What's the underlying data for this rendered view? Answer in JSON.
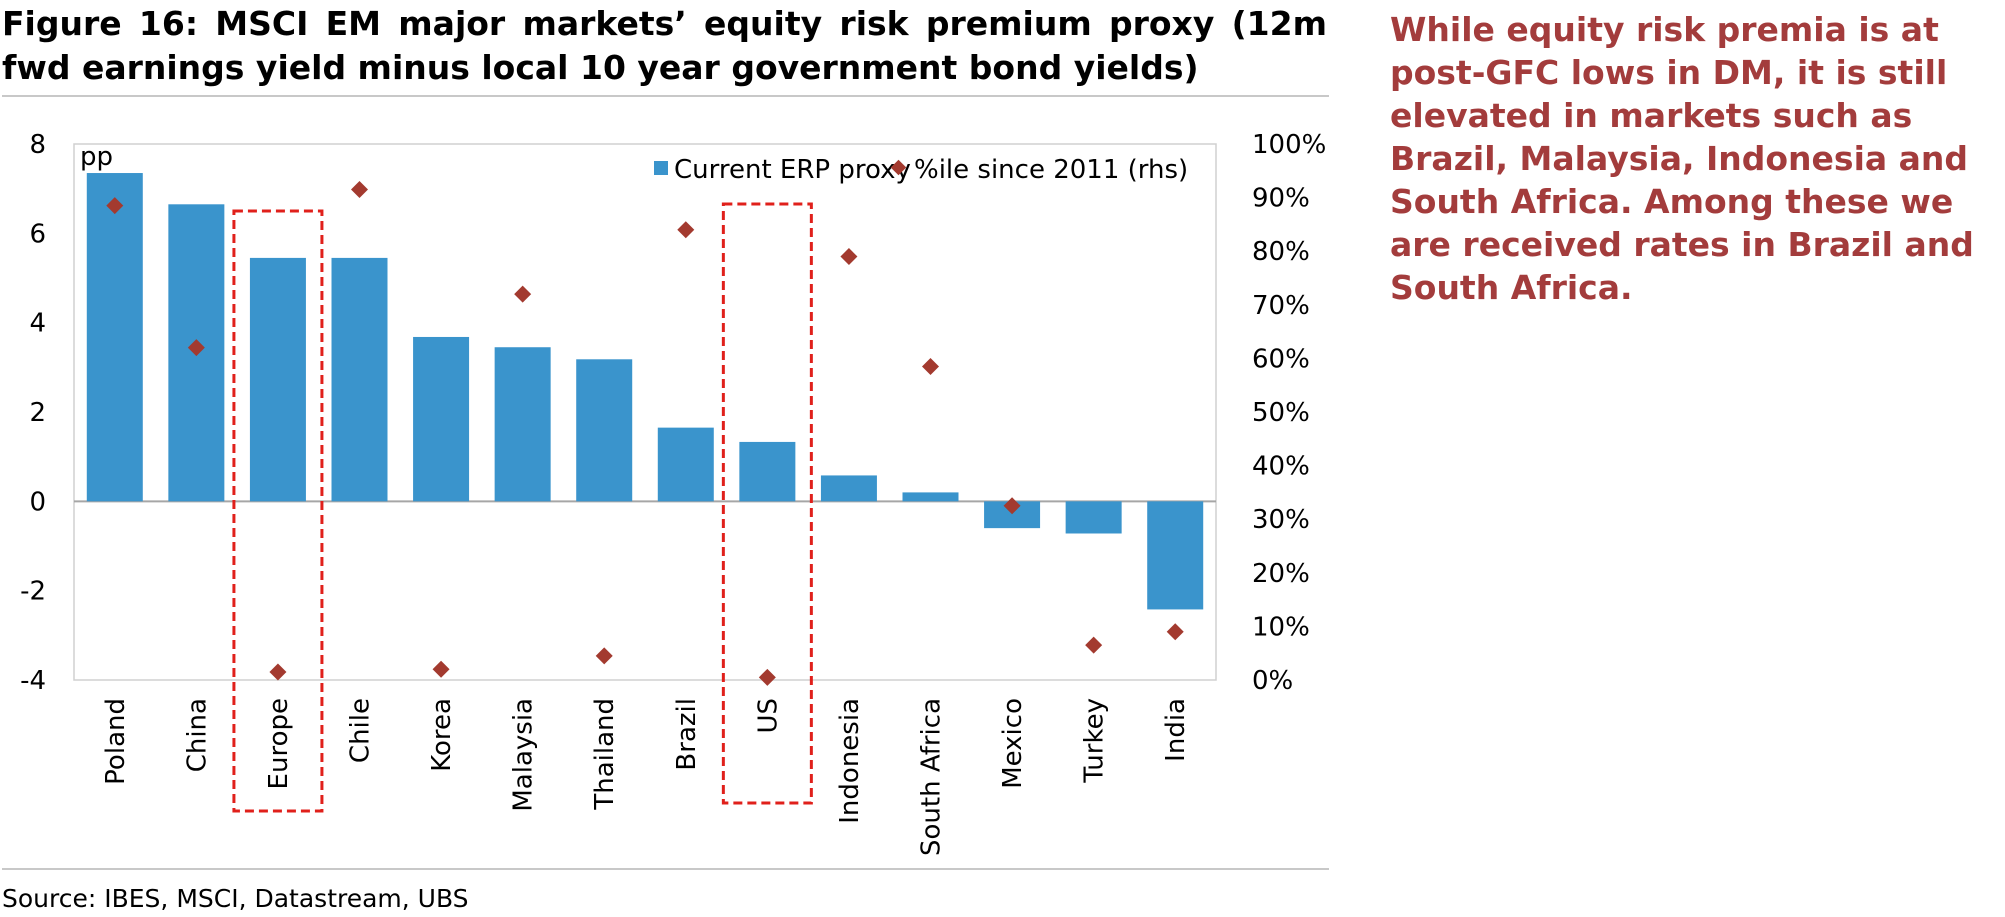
{
  "figure": {
    "title": "Figure 16: MSCI EM major markets’ equity risk premium proxy (12m fwd earnings yield minus local 10 year government bond yields)",
    "source": "Source: IBES, MSCI, Datastream, UBS",
    "commentary": "While equity risk premia is at post-GFC lows in DM, it is still elevated in markets such as Brazil, Malaysia, Indonesia and South Africa. Among these we are received rates in Brazil and South Africa."
  },
  "chart_data": {
    "type": "bar",
    "categories": [
      "Poland",
      "China",
      "Europe",
      "Chile",
      "Korea",
      "Malaysia",
      "Thailand",
      "Brazil",
      "US",
      "Indonesia",
      "South Africa",
      "Mexico",
      "Turkey",
      "India"
    ],
    "series": [
      {
        "name": "Current ERP proxy",
        "type": "bar",
        "axis": "left",
        "color": "#3a94cc",
        "values": [
          7.35,
          6.65,
          5.45,
          5.45,
          3.68,
          3.45,
          3.18,
          1.65,
          1.33,
          0.58,
          0.2,
          -0.6,
          -0.72,
          -2.42
        ]
      },
      {
        "name": "%ile since 2011 (rhs)",
        "type": "scatter",
        "axis": "right",
        "color": "#a33a2f",
        "values": [
          88.5,
          62,
          1.5,
          91.5,
          2,
          72,
          4.5,
          84,
          0.5,
          79,
          58.5,
          32.5,
          6.5,
          9
        ]
      }
    ],
    "ylabel": "pp",
    "ylim": [
      -4,
      8
    ],
    "yticks": [
      -4,
      -2,
      0,
      2,
      4,
      6,
      8
    ],
    "y2lim": [
      0,
      100
    ],
    "y2ticks": [
      "0%",
      "10%",
      "20%",
      "30%",
      "40%",
      "50%",
      "60%",
      "70%",
      "80%",
      "90%",
      "100%"
    ],
    "highlighted_categories": [
      "Europe",
      "US"
    ],
    "highlight_color": "#e0201b",
    "legend_position": "top-right",
    "grid": false
  }
}
